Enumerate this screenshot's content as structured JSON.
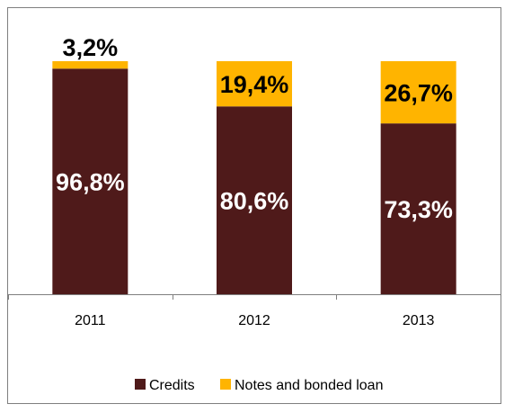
{
  "chart_data": {
    "type": "bar",
    "stacked": true,
    "percent": true,
    "categories": [
      "2011",
      "2012",
      "2013"
    ],
    "series": [
      {
        "name": "Credits",
        "color": "#4f1a1a",
        "values": [
          96.8,
          80.6,
          73.3
        ],
        "labels": [
          "96,8%",
          "80,6%",
          "73,3%"
        ],
        "label_color": "#ffffff"
      },
      {
        "name": "Notes and bonded loan",
        "color": "#ffb400",
        "values": [
          3.2,
          19.4,
          26.7
        ],
        "labels": [
          "3,2%",
          "19,4%",
          "26,7%"
        ],
        "label_color": "#000000"
      }
    ],
    "ylim": [
      0,
      100
    ],
    "grid": false,
    "legend_position": "bottom"
  }
}
